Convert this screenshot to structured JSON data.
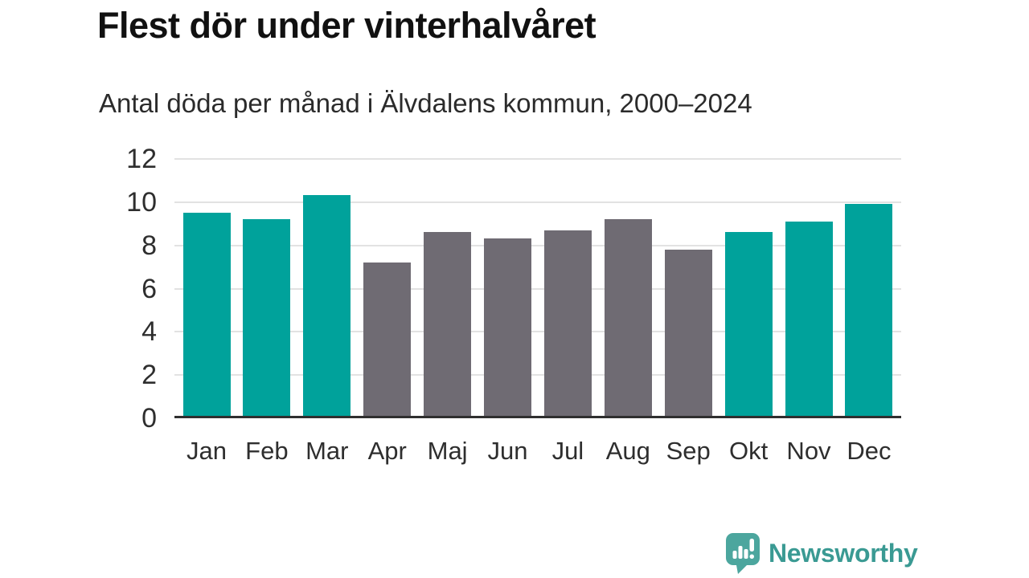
{
  "page": {
    "background": "#ffffff"
  },
  "header": {
    "title": "Flest dör under vinterhalvåret",
    "subtitle": "Antal döda per månad i Älvdalens kommun, 2000–2024"
  },
  "chart_data": {
    "type": "bar",
    "title": "Flest dör under vinterhalvåret",
    "subtitle": "Antal döda per månad i Älvdalens kommun, 2000–2024",
    "categories": [
      "Jan",
      "Feb",
      "Mar",
      "Apr",
      "Maj",
      "Jun",
      "Jul",
      "Aug",
      "Sep",
      "Okt",
      "Nov",
      "Dec"
    ],
    "values": [
      9.4,
      9.1,
      10.2,
      7.1,
      8.5,
      8.2,
      8.6,
      9.1,
      7.7,
      8.5,
      9.0,
      9.8
    ],
    "bar_colors": [
      "#00a29b",
      "#00a29b",
      "#00a29b",
      "#6f6b73",
      "#6f6b73",
      "#6f6b73",
      "#6f6b73",
      "#6f6b73",
      "#6f6b73",
      "#00a29b",
      "#00a29b",
      "#00a29b"
    ],
    "highlight_color": "#00a29b",
    "muted_color": "#6f6b73",
    "xlabel": "",
    "ylabel": "",
    "ylim": [
      0,
      12
    ],
    "yticks": [
      0,
      2,
      4,
      6,
      8,
      10,
      12
    ],
    "grid": "horizontal",
    "legend": "none",
    "gridline_color": "#e2e2e2",
    "axis_line_color": "#2f2f2f"
  },
  "footer": {
    "brand": "Newsworthy",
    "brand_text_color": "#3a9a93",
    "logo_bubble_color": "#4ca69e",
    "logo_icon": "bar-chart-exclamation-bubble-icon"
  }
}
